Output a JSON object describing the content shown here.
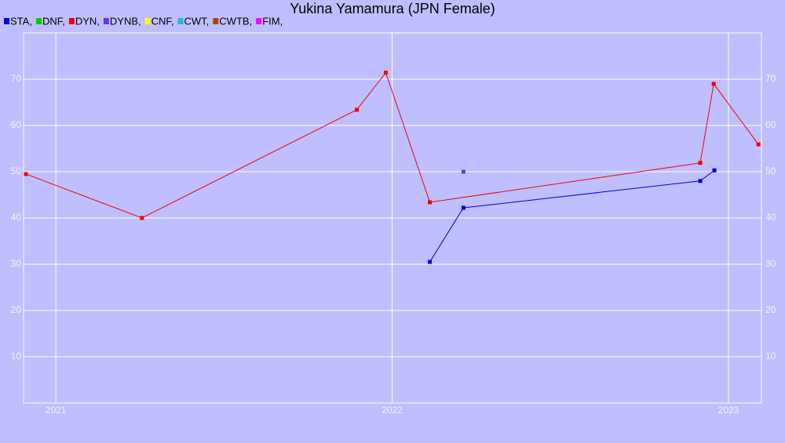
{
  "chart_data": {
    "type": "line",
    "title": "Yukina Yamamura (JPN Female)",
    "xlim": [
      2020.904,
      2023.098
    ],
    "xticks": [
      2021,
      2022,
      2023
    ],
    "ylim": [
      0,
      80
    ],
    "yticks": [
      10,
      20,
      30,
      40,
      50,
      60,
      70
    ],
    "grid": true,
    "legend": "top-left",
    "series": [
      {
        "name": "STA,",
        "color": "#0000dd",
        "x": [
          2022.112,
          2022.212,
          2022.916,
          2022.958
        ],
        "values": [
          30.5,
          42.2,
          48,
          50.3
        ]
      },
      {
        "name": "DNF,",
        "color": "#00cc00",
        "x": [],
        "values": []
      },
      {
        "name": "DYN,",
        "color": "#ee0000",
        "x": [
          2020.911,
          2021.256,
          2021.895,
          2021.981,
          2022.112,
          2022.916,
          2022.956,
          2023.089
        ],
        "values": [
          49.5,
          40,
          63.4,
          71.4,
          43.4,
          51.9,
          69,
          55.9
        ]
      },
      {
        "name": "DYNB,",
        "color": "#6633ee",
        "x": [
          2022.212
        ],
        "values": [
          50
        ]
      },
      {
        "name": "CNF,",
        "color": "#ffff00",
        "x": [],
        "values": []
      },
      {
        "name": "CWT,",
        "color": "#22bbdd",
        "x": [],
        "values": []
      },
      {
        "name": "CWTB,",
        "color": "#aa4400",
        "x": [],
        "values": []
      },
      {
        "name": "FIM,",
        "color": "#ff00ff",
        "x": [],
        "values": []
      }
    ]
  }
}
